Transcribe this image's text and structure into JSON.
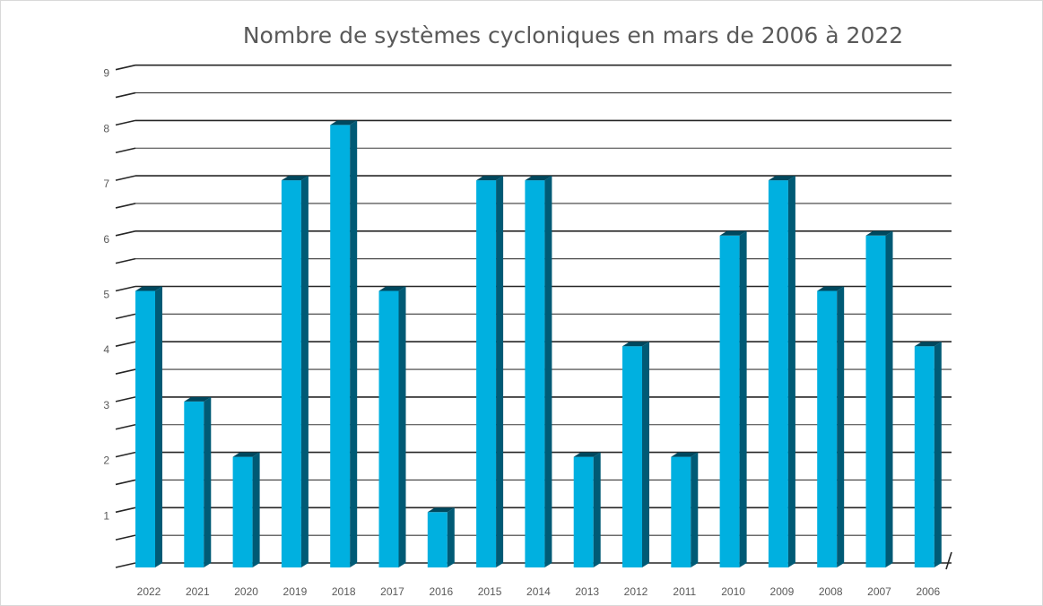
{
  "chart_data": {
    "type": "bar",
    "title": "Nombre de systèmes cycloniques en mars de 2006 à 2022",
    "xlabel": "",
    "ylabel": "",
    "ylim": [
      0,
      9
    ],
    "yticks": [
      "1",
      "2",
      "3",
      "4",
      "5",
      "6",
      "7",
      "8",
      "9"
    ],
    "categories": [
      "2022",
      "2021",
      "2020",
      "2019",
      "2018",
      "2017",
      "2016",
      "2015",
      "2014",
      "2013",
      "2012",
      "2011",
      "2010",
      "2009",
      "2008",
      "2007",
      "2006"
    ],
    "values": [
      5,
      3,
      2,
      7,
      8,
      5,
      1,
      7,
      7,
      2,
      4,
      2,
      6,
      7,
      5,
      6,
      4
    ],
    "grid": true,
    "legend": "none",
    "bar_color": "#00B0E0",
    "bar_side_color": "#005A75",
    "bar_top_color": "#00485E"
  }
}
